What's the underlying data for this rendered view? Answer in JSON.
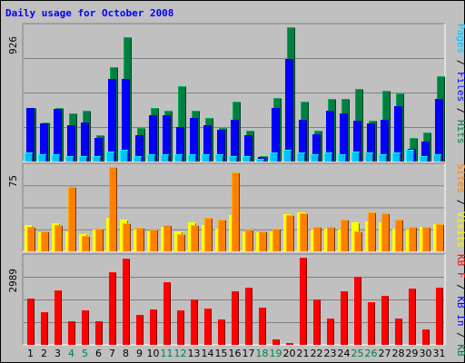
{
  "title": "Daily usage for October 2008",
  "chart_data": [
    {
      "type": "bar",
      "panel": "pages-files-hits",
      "max_label": "926",
      "ylim": [
        0,
        926
      ],
      "right_label": {
        "parts": [
          {
            "text": "Pages",
            "color": "#00c0ff"
          },
          {
            "text": " / ",
            "color": "#000000"
          },
          {
            "text": "Files",
            "color": "#0000ff"
          },
          {
            "text": " / ",
            "color": "#000000"
          },
          {
            "text": "Hits",
            "color": "#008040"
          }
        ]
      },
      "series": [
        {
          "name": "Hits",
          "color": "#008040",
          "values": [
            370,
            270,
            370,
            330,
            350,
            180,
            650,
            860,
            230,
            370,
            350,
            520,
            350,
            300,
            230,
            410,
            210,
            40,
            440,
            926,
            410,
            210,
            430,
            430,
            500,
            280,
            490,
            470,
            160,
            200,
            590
          ]
        },
        {
          "name": "Files",
          "color": "#0000ff",
          "values": [
            370,
            260,
            360,
            250,
            270,
            160,
            570,
            570,
            180,
            320,
            320,
            240,
            300,
            250,
            220,
            290,
            180,
            30,
            370,
            710,
            290,
            190,
            350,
            330,
            280,
            260,
            290,
            380,
            90,
            140,
            430
          ]
        },
        {
          "name": "Pages",
          "color": "#00c0ff",
          "values": [
            60,
            50,
            50,
            40,
            40,
            40,
            70,
            80,
            40,
            50,
            50,
            50,
            50,
            50,
            50,
            40,
            40,
            20,
            60,
            80,
            60,
            50,
            60,
            50,
            70,
            60,
            50,
            60,
            80,
            40,
            50
          ]
        }
      ]
    },
    {
      "type": "bar",
      "panel": "visits-sites",
      "max_label": "75",
      "ylim": [
        0,
        75
      ],
      "right_label": {
        "parts": [
          {
            "text": "Sites",
            "color": "#ff8000"
          },
          {
            "text": " / ",
            "color": "#000000"
          },
          {
            "text": "Visits",
            "color": "#ffff00"
          }
        ]
      },
      "series": [
        {
          "name": "Visits",
          "color": "#ffff00",
          "values": [
            23,
            17,
            25,
            18,
            15,
            19,
            30,
            28,
            19,
            18,
            22,
            18,
            26,
            23,
            20,
            32,
            17,
            17,
            18,
            33,
            35,
            19,
            20,
            19,
            26,
            27,
            26,
            20,
            19,
            22,
            24
          ]
        },
        {
          "name": "Sites",
          "color": "#ff8000",
          "values": [
            22,
            18,
            23,
            57,
            14,
            20,
            75,
            25,
            21,
            19,
            23,
            15,
            23,
            30,
            28,
            70,
            19,
            18,
            20,
            32,
            34,
            22,
            22,
            28,
            18,
            35,
            34,
            28,
            22,
            22,
            24
          ]
        }
      ]
    },
    {
      "type": "bar",
      "panel": "kbytes",
      "max_label": "2989",
      "ylim": [
        0,
        2989
      ],
      "right_label": {
        "parts": [
          {
            "text": "KB F",
            "color": "#ff0000"
          },
          {
            "text": " / ",
            "color": "#000000"
          },
          {
            "text": "KB In",
            "color": "#0000ff"
          },
          {
            "text": " / ",
            "color": "#000000"
          },
          {
            "text": "KB Out",
            "color": "#008040"
          }
        ]
      },
      "series": [
        {
          "name": "KB F",
          "color": "#ff0000",
          "values": [
            1600,
            1120,
            1880,
            800,
            1190,
            820,
            2480,
            2950,
            1040,
            1210,
            2150,
            1180,
            1560,
            1260,
            880,
            1840,
            1970,
            1270,
            180,
            50,
            2989,
            1560,
            900,
            1840,
            2350,
            1460,
            1690,
            890,
            1920,
            520,
            1950
          ]
        }
      ]
    }
  ],
  "days": [
    {
      "label": "1",
      "color": "#000000"
    },
    {
      "label": "2",
      "color": "#000000"
    },
    {
      "label": "3",
      "color": "#000000"
    },
    {
      "label": "4",
      "color": "#008040"
    },
    {
      "label": "5",
      "color": "#008040"
    },
    {
      "label": "6",
      "color": "#000000"
    },
    {
      "label": "7",
      "color": "#000000"
    },
    {
      "label": "8",
      "color": "#000000"
    },
    {
      "label": "9",
      "color": "#000000"
    },
    {
      "label": "10",
      "color": "#000000"
    },
    {
      "label": "11",
      "color": "#008040"
    },
    {
      "label": "12",
      "color": "#008040"
    },
    {
      "label": "13",
      "color": "#000000"
    },
    {
      "label": "14",
      "color": "#000000"
    },
    {
      "label": "15",
      "color": "#000000"
    },
    {
      "label": "16",
      "color": "#000000"
    },
    {
      "label": "17",
      "color": "#000000"
    },
    {
      "label": "18",
      "color": "#008040"
    },
    {
      "label": "19",
      "color": "#008040"
    },
    {
      "label": "20",
      "color": "#000000"
    },
    {
      "label": "21",
      "color": "#000000"
    },
    {
      "label": "22",
      "color": "#000000"
    },
    {
      "label": "23",
      "color": "#000000"
    },
    {
      "label": "24",
      "color": "#000000"
    },
    {
      "label": "25",
      "color": "#008040"
    },
    {
      "label": "26",
      "color": "#008040"
    },
    {
      "label": "27",
      "color": "#000000"
    },
    {
      "label": "28",
      "color": "#000000"
    },
    {
      "label": "29",
      "color": "#000000"
    },
    {
      "label": "30",
      "color": "#000000"
    },
    {
      "label": "31",
      "color": "#000000"
    }
  ]
}
